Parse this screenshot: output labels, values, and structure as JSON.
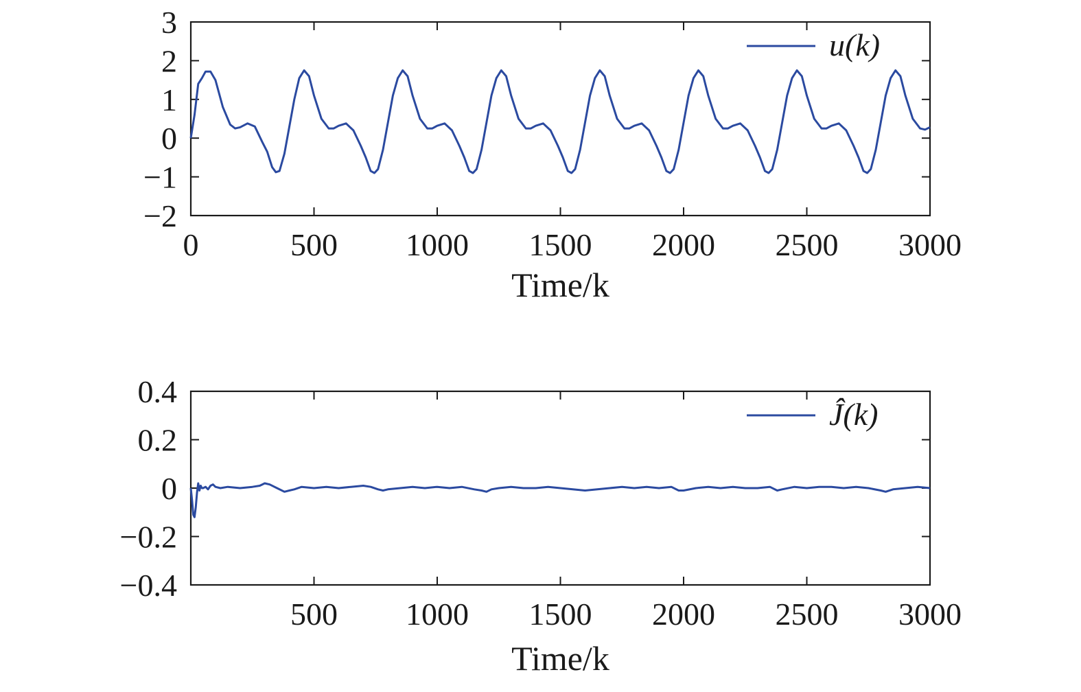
{
  "chart_data": [
    {
      "type": "line",
      "xlabel": "Time/k",
      "ylabel": "",
      "xlim": [
        0,
        3000
      ],
      "ylim": [
        -2,
        3
      ],
      "xticks": [
        0,
        500,
        1000,
        1500,
        2000,
        2500,
        3000
      ],
      "xtick_labels": [
        "0",
        "500",
        "1000",
        "1500",
        "2000",
        "2500",
        "3000"
      ],
      "yticks": [
        3,
        2,
        1,
        0,
        -1,
        -2
      ],
      "ytick_labels": [
        "3",
        "2",
        "1",
        "0",
        "−1",
        "−2"
      ],
      "grid": false,
      "legend": {
        "position": "top-right"
      },
      "series": [
        {
          "name": "u(k)",
          "color": "#2b4aa0",
          "x": [
            0,
            15,
            30,
            45,
            60,
            80,
            100,
            130,
            160,
            180,
            200,
            230,
            260,
            290,
            310,
            330,
            345,
            360,
            380,
            400,
            420,
            440,
            460,
            480,
            500,
            530,
            560,
            580,
            600,
            630,
            660,
            690,
            710,
            730,
            745,
            760,
            780,
            800,
            820,
            840,
            860,
            880,
            900,
            930,
            960,
            980,
            1000,
            1030,
            1060,
            1090,
            1110,
            1130,
            1145,
            1160,
            1180,
            1200,
            1220,
            1240,
            1260,
            1280,
            1300,
            1330,
            1360,
            1380,
            1400,
            1430,
            1460,
            1490,
            1510,
            1530,
            1545,
            1560,
            1580,
            1600,
            1620,
            1640,
            1660,
            1680,
            1700,
            1730,
            1760,
            1780,
            1800,
            1830,
            1860,
            1890,
            1910,
            1930,
            1945,
            1960,
            1980,
            2000,
            2020,
            2040,
            2060,
            2080,
            2100,
            2130,
            2160,
            2180,
            2200,
            2230,
            2260,
            2290,
            2310,
            2330,
            2345,
            2360,
            2380,
            2400,
            2420,
            2440,
            2460,
            2480,
            2500,
            2530,
            2560,
            2580,
            2600,
            2630,
            2660,
            2690,
            2710,
            2730,
            2745,
            2760,
            2780,
            2800,
            2820,
            2840,
            2860,
            2880,
            2900,
            2930,
            2960,
            2980,
            3000
          ],
          "y": [
            0,
            0.6,
            1.4,
            1.55,
            1.72,
            1.72,
            1.5,
            0.8,
            0.35,
            0.25,
            0.28,
            0.38,
            0.3,
            -0.1,
            -0.35,
            -0.75,
            -0.88,
            -0.85,
            -0.4,
            0.3,
            1.0,
            1.55,
            1.75,
            1.6,
            1.1,
            0.5,
            0.25,
            0.25,
            0.32,
            0.38,
            0.2,
            -0.2,
            -0.5,
            -0.85,
            -0.9,
            -0.8,
            -0.3,
            0.4,
            1.1,
            1.55,
            1.75,
            1.6,
            1.1,
            0.5,
            0.25,
            0.25,
            0.32,
            0.38,
            0.2,
            -0.2,
            -0.5,
            -0.85,
            -0.9,
            -0.8,
            -0.3,
            0.4,
            1.1,
            1.55,
            1.75,
            1.6,
            1.1,
            0.5,
            0.25,
            0.25,
            0.32,
            0.38,
            0.2,
            -0.2,
            -0.5,
            -0.85,
            -0.9,
            -0.8,
            -0.3,
            0.4,
            1.1,
            1.55,
            1.75,
            1.6,
            1.1,
            0.5,
            0.25,
            0.25,
            0.32,
            0.38,
            0.2,
            -0.2,
            -0.5,
            -0.85,
            -0.9,
            -0.8,
            -0.3,
            0.4,
            1.1,
            1.55,
            1.75,
            1.6,
            1.1,
            0.5,
            0.25,
            0.25,
            0.32,
            0.38,
            0.2,
            -0.2,
            -0.5,
            -0.85,
            -0.9,
            -0.8,
            -0.3,
            0.4,
            1.1,
            1.55,
            1.75,
            1.6,
            1.1,
            0.5,
            0.25,
            0.25,
            0.32,
            0.38,
            0.2,
            -0.2,
            -0.5,
            -0.85,
            -0.9,
            -0.8,
            -0.3,
            0.4,
            1.1,
            1.55,
            1.75,
            1.6,
            1.1,
            0.5,
            0.25,
            0.22,
            0.28
          ]
        }
      ]
    },
    {
      "type": "line",
      "xlabel": "Time/k",
      "ylabel": "",
      "xlim": [
        0,
        3000
      ],
      "ylim": [
        -0.4,
        0.4
      ],
      "xticks": [
        500,
        1000,
        1500,
        2000,
        2500,
        3000
      ],
      "xtick_labels": [
        "500",
        "1000",
        "1500",
        "2000",
        "2500",
        "3000"
      ],
      "yticks": [
        0.4,
        0.2,
        0,
        -0.2,
        -0.4
      ],
      "ytick_labels": [
        "0.4",
        "0.2",
        "0",
        "−0.2",
        "−0.4"
      ],
      "grid": false,
      "legend": {
        "position": "top-right"
      },
      "series": [
        {
          "name": "Ĵ(k)",
          "color": "#2b4aa0",
          "x": [
            0,
            5,
            10,
            15,
            20,
            25,
            30,
            35,
            40,
            45,
            50,
            60,
            70,
            80,
            90,
            100,
            120,
            150,
            200,
            250,
            280,
            300,
            320,
            350,
            380,
            400,
            420,
            450,
            500,
            550,
            600,
            650,
            700,
            730,
            760,
            780,
            800,
            850,
            900,
            950,
            1000,
            1050,
            1100,
            1150,
            1180,
            1200,
            1220,
            1250,
            1300,
            1350,
            1400,
            1450,
            1500,
            1550,
            1600,
            1650,
            1700,
            1750,
            1800,
            1850,
            1900,
            1950,
            1980,
            2000,
            2050,
            2100,
            2150,
            2200,
            2250,
            2300,
            2350,
            2380,
            2400,
            2450,
            2500,
            2550,
            2600,
            2650,
            2700,
            2750,
            2800,
            2820,
            2850,
            2900,
            2950,
            3000
          ],
          "y": [
            0,
            -0.05,
            -0.11,
            -0.12,
            -0.08,
            -0.02,
            0.02,
            -0.01,
            0.01,
            0.0,
            0.0,
            0.005,
            -0.005,
            0.01,
            0.015,
            0.005,
            0.0,
            0.005,
            0.0,
            0.005,
            0.01,
            0.02,
            0.015,
            0.0,
            -0.015,
            -0.01,
            -0.005,
            0.005,
            0.0,
            0.005,
            0.0,
            0.005,
            0.01,
            0.005,
            -0.005,
            -0.01,
            -0.005,
            0.0,
            0.005,
            0.0,
            0.005,
            0.0,
            0.005,
            -0.005,
            -0.01,
            -0.015,
            -0.005,
            0.0,
            0.005,
            0.0,
            0.0,
            0.005,
            0.0,
            -0.005,
            -0.01,
            -0.005,
            0.0,
            0.005,
            0.0,
            0.005,
            0.0,
            0.005,
            -0.01,
            -0.01,
            0.0,
            0.005,
            0.0,
            0.005,
            0.0,
            0.0,
            0.005,
            -0.01,
            -0.005,
            0.005,
            0.0,
            0.005,
            0.005,
            0.0,
            0.005,
            0.0,
            -0.01,
            -0.015,
            -0.005,
            0.0,
            0.005,
            0.0
          ]
        }
      ]
    }
  ]
}
